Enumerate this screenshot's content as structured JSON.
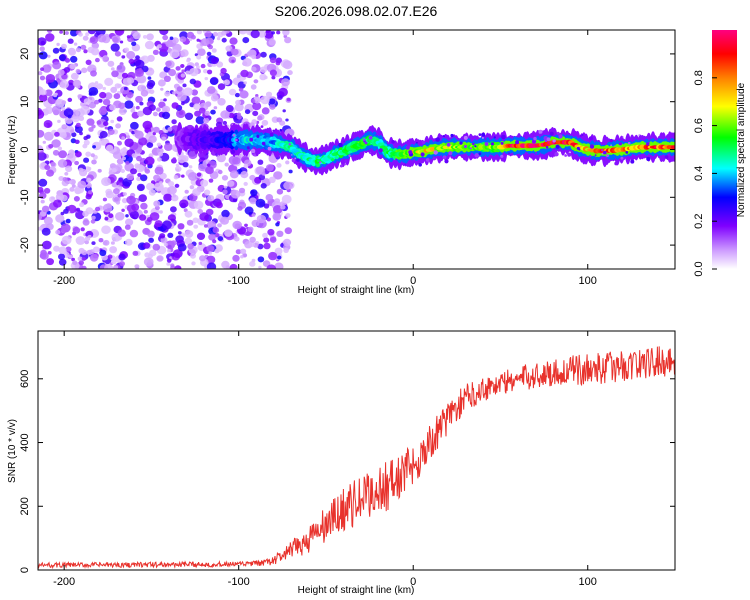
{
  "title": "S206.2026.098.02.07.E26",
  "chart_data": [
    {
      "type": "heatmap",
      "xlabel": "Height of straight line (km)",
      "ylabel": "Frequency (Hz)",
      "xlim": [
        -215,
        150
      ],
      "ylim": [
        -25,
        25
      ],
      "xticks": [
        -200,
        -100,
        0,
        100
      ],
      "yticks": [
        -20,
        -10,
        0,
        10,
        20
      ],
      "noise_region_x": [
        -215,
        -90
      ],
      "noise_region_note": "scattered low-amplitude speckle",
      "ridge": {
        "name": "dominant spectral peak",
        "x": [
          -135,
          -120,
          -105,
          -100,
          -90,
          -80,
          -75,
          -70,
          -65,
          -60,
          -55,
          -50,
          -45,
          -40,
          -35,
          -30,
          -25,
          -20,
          -15,
          -10,
          -5,
          0,
          5,
          10,
          20,
          30,
          40,
          50,
          55,
          60,
          70,
          75,
          80,
          85,
          90,
          95,
          100,
          105,
          110,
          120,
          130,
          140,
          150
        ],
        "freq": [
          2.3,
          2.0,
          2.0,
          2.0,
          2.0,
          1.5,
          1.0,
          0.5,
          -1.0,
          -2.0,
          -2.5,
          -2.0,
          -1.0,
          -0.5,
          0.5,
          1.0,
          2.0,
          1.5,
          -0.5,
          -1.0,
          -1.0,
          -0.5,
          -0.5,
          0.0,
          0.5,
          0.5,
          0.5,
          0.5,
          0.8,
          0.8,
          0.8,
          1.0,
          1.5,
          1.5,
          1.5,
          0.5,
          0.0,
          -0.3,
          -0.3,
          0.0,
          0.5,
          0.5,
          0.5
        ],
        "amplitude": [
          0.15,
          0.22,
          0.3,
          0.38,
          0.42,
          0.38,
          0.42,
          0.45,
          0.42,
          0.45,
          0.5,
          0.45,
          0.48,
          0.5,
          0.5,
          0.55,
          0.5,
          0.48,
          0.45,
          0.55,
          0.6,
          0.65,
          0.7,
          0.68,
          0.65,
          0.62,
          0.6,
          0.6,
          0.85,
          0.95,
          0.95,
          0.9,
          0.95,
          0.95,
          0.9,
          0.75,
          0.7,
          0.75,
          0.85,
          0.8,
          0.8,
          0.85,
          0.85
        ]
      },
      "colorbar": {
        "label": "Normalized spectral amplitude",
        "range": [
          0,
          1
        ],
        "ticks": [
          "0.0",
          "0.2",
          "0.4",
          "0.6",
          "0.8"
        ],
        "colors": [
          "#ffffff",
          "#cc99ff",
          "#7f00ff",
          "#0000ff",
          "#00ffff",
          "#00ff00",
          "#ffff00",
          "#ff8000",
          "#ff0000",
          "#ff0080"
        ]
      }
    },
    {
      "type": "line",
      "xlabel": "Height of straight line (km)",
      "ylabel": "SNR (10 * v/v)",
      "xlim": [
        -215,
        150
      ],
      "ylim": [
        0,
        750
      ],
      "xticks": [
        -200,
        -100,
        0,
        100
      ],
      "yticks": [
        0,
        200,
        400,
        600
      ],
      "series": [
        {
          "name": "SNR",
          "color": "#e8322c",
          "x": [
            -215,
            -100,
            -85,
            -80,
            -75,
            -70,
            -60,
            -50,
            -40,
            -30,
            -20,
            -10,
            0,
            10,
            20,
            30,
            40,
            60,
            80,
            100,
            120,
            150
          ],
          "mean": [
            15,
            18,
            22,
            30,
            45,
            60,
            95,
            140,
            190,
            220,
            250,
            280,
            330,
            400,
            480,
            540,
            570,
            600,
            620,
            630,
            640,
            660
          ],
          "noise_amplitude": [
            8,
            8,
            10,
            15,
            20,
            30,
            45,
            60,
            70,
            75,
            80,
            80,
            70,
            60,
            50,
            45,
            40,
            40,
            45,
            50,
            50,
            50
          ]
        }
      ]
    }
  ]
}
